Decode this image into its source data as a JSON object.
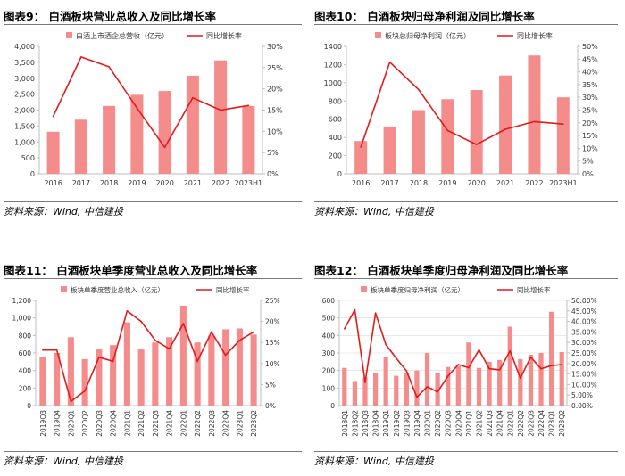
{
  "colors": {
    "bar": "#f48c8c",
    "line": "#e11b1b",
    "axis": "#bfbfbf",
    "grid": "#d9d9d9",
    "text": "#333333"
  },
  "chart_data": [
    {
      "type": "bar+line",
      "title": "图表9：   白酒板块营业总收入及同比增长率",
      "source": "资料来源：Wind, 中信建投",
      "categories": [
        "2016",
        "2017",
        "2018",
        "2019",
        "2020",
        "2021",
        "2022",
        "2023H1"
      ],
      "left_ticks": [
        "0",
        "500",
        "1,000",
        "1,500",
        "2,000",
        "2,500",
        "3,000",
        "3,500",
        "4,000"
      ],
      "right_ticks": [
        "0%",
        "5%",
        "10%",
        "15%",
        "20%",
        "25%",
        "30%"
      ],
      "ylim_left": [
        0,
        4000
      ],
      "ylim_right": [
        0,
        30
      ],
      "grid": false,
      "legend_position": "top",
      "series": [
        {
          "name": "白酒上市酒企总营收（亿元）",
          "type": "bar",
          "axis": "left",
          "values": [
            1320,
            1700,
            2130,
            2480,
            2600,
            3080,
            3560,
            2130
          ]
        },
        {
          "name": "同比增长率",
          "type": "line",
          "axis": "right",
          "values": [
            13.5,
            27.5,
            25.2,
            15.5,
            6.2,
            17.9,
            15.0,
            16.1
          ]
        }
      ]
    },
    {
      "type": "bar+line",
      "title": "图表10：   白酒板块归母净利润及同比增长率",
      "source": "资料来源：Wind, 中信建投",
      "categories": [
        "2016",
        "2017",
        "2018",
        "2019",
        "2020",
        "2021",
        "2022",
        "2023H1"
      ],
      "left_ticks": [
        "0",
        "200",
        "400",
        "600",
        "800",
        "1000",
        "1200",
        "1400"
      ],
      "right_ticks": [
        "0%",
        "5%",
        "10%",
        "15%",
        "20%",
        "25%",
        "30%",
        "35%",
        "40%",
        "45%",
        "50%"
      ],
      "ylim_left": [
        0,
        1400
      ],
      "ylim_right": [
        0,
        50
      ],
      "grid": false,
      "legend_position": "top",
      "series": [
        {
          "name": "板块总归母净利润（亿元）",
          "type": "bar",
          "axis": "left",
          "values": [
            360,
            520,
            700,
            820,
            920,
            1080,
            1300,
            840
          ]
        },
        {
          "name": "同比增长率",
          "type": "line",
          "axis": "right",
          "values": [
            10.5,
            43.8,
            33.0,
            17.0,
            11.5,
            17.5,
            20.5,
            19.5
          ]
        }
      ]
    },
    {
      "type": "bar+line",
      "title": "图表11：   白酒板块单季度营业总收入及同比增长率",
      "source": "资料来源：Wind, 中信建投",
      "categories": [
        "2019Q3",
        "2019Q4",
        "2020Q1",
        "2020Q2",
        "2020Q3",
        "2020Q4",
        "2021Q1",
        "2021Q2",
        "2021Q3",
        "2021Q4",
        "2022Q1",
        "2022Q2",
        "2022Q3",
        "2022Q4",
        "2023Q1",
        "2023Q2"
      ],
      "left_ticks": [
        "0",
        "200",
        "400",
        "600",
        "800",
        "1,000",
        "1,200"
      ],
      "right_ticks": [
        "0%",
        "5%",
        "10%",
        "15%",
        "20%",
        "25%"
      ],
      "ylim_left": [
        0,
        1200
      ],
      "ylim_right": [
        0,
        25
      ],
      "grid": false,
      "legend_position": "top",
      "series": [
        {
          "name": "板块单季度营业总收入（亿元）",
          "type": "bar",
          "axis": "left",
          "values": [
            550,
            600,
            780,
            530,
            640,
            690,
            950,
            640,
            720,
            780,
            1140,
            720,
            800,
            870,
            880,
            810
          ]
        },
        {
          "name": "同比增长率",
          "type": "line",
          "axis": "right",
          "values": [
            13.2,
            13.2,
            1.0,
            3.5,
            11.5,
            10.5,
            22.5,
            20.0,
            15.5,
            13.5,
            19.5,
            10.5,
            17.5,
            12.0,
            15.5,
            17.5
          ]
        }
      ]
    },
    {
      "type": "bar+line",
      "title": "图表12：   白酒板块单季度归母净利润及同比增长率",
      "source": "资料来源：Wind, 中信建投",
      "categories": [
        "2018Q1",
        "2018Q2",
        "2018Q3",
        "2018Q4",
        "2019Q1",
        "2019Q2",
        "2019Q3",
        "2019Q4",
        "2020Q1",
        "2020Q2",
        "2020Q3",
        "2020Q4",
        "2021Q1",
        "2021Q2",
        "2021Q3",
        "2021Q4",
        "2022Q1",
        "2022Q2",
        "2022Q3",
        "2022Q4",
        "2023Q1",
        "2023Q2"
      ],
      "left_ticks": [
        "0",
        "100",
        "200",
        "300",
        "400",
        "500",
        "600"
      ],
      "right_ticks": [
        "0.00%",
        "5.00%",
        "10.00%",
        "15.00%",
        "20.00%",
        "25.00%",
        "30.00%",
        "35.00%",
        "40.00%",
        "45.00%",
        "50.00%"
      ],
      "ylim_left": [
        0,
        600
      ],
      "ylim_right": [
        0,
        50
      ],
      "grid": true,
      "legend_position": "top",
      "series": [
        {
          "name": "板块单季度归母净利润（亿元）",
          "type": "bar",
          "axis": "left",
          "values": [
            215,
            140,
            160,
            185,
            280,
            170,
            185,
            200,
            300,
            185,
            220,
            225,
            360,
            215,
            250,
            260,
            450,
            265,
            290,
            300,
            535,
            305
          ]
        },
        {
          "name": "同比增长率",
          "type": "line",
          "axis": "right",
          "values": [
            36.5,
            45.5,
            11.0,
            44.0,
            29.0,
            22.5,
            16.5,
            4.0,
            9.0,
            6.5,
            14.0,
            19.5,
            18.0,
            26.5,
            17.5,
            17.0,
            26.0,
            13.0,
            23.0,
            17.5,
            19.0,
            19.5
          ]
        }
      ]
    }
  ]
}
